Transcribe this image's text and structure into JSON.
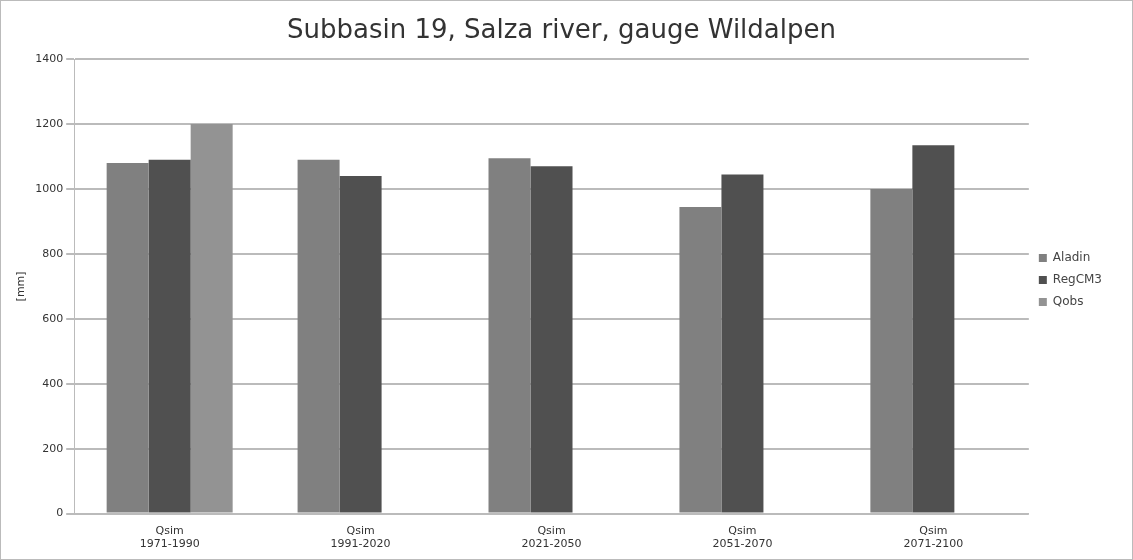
{
  "chart_data": {
    "type": "bar",
    "title": "Subbasin 19, Salza river, gauge Wildalpen",
    "ylabel": "[mm]",
    "categories": [
      "Qsim\n1971-1990",
      "Qsim\n1991-2020",
      "Qsim\n2021-2050",
      "Qsim\n2051-2070",
      "Qsim\n2071-2100"
    ],
    "series": [
      {
        "name": "Aladin",
        "color": "#808080",
        "values": [
          1080,
          1090,
          1095,
          945,
          1000
        ]
      },
      {
        "name": "RegCM3",
        "color": "#505050",
        "values": [
          1090,
          1040,
          1070,
          1045,
          1135
        ]
      },
      {
        "name": "Qobs",
        "color": "#939393",
        "values": [
          1200,
          null,
          null,
          null,
          null
        ]
      }
    ],
    "ylim": [
      0,
      1400
    ],
    "yticks": [
      0,
      200,
      400,
      600,
      800,
      1000,
      1200,
      1400
    ],
    "grid": "y",
    "legend": "right"
  }
}
